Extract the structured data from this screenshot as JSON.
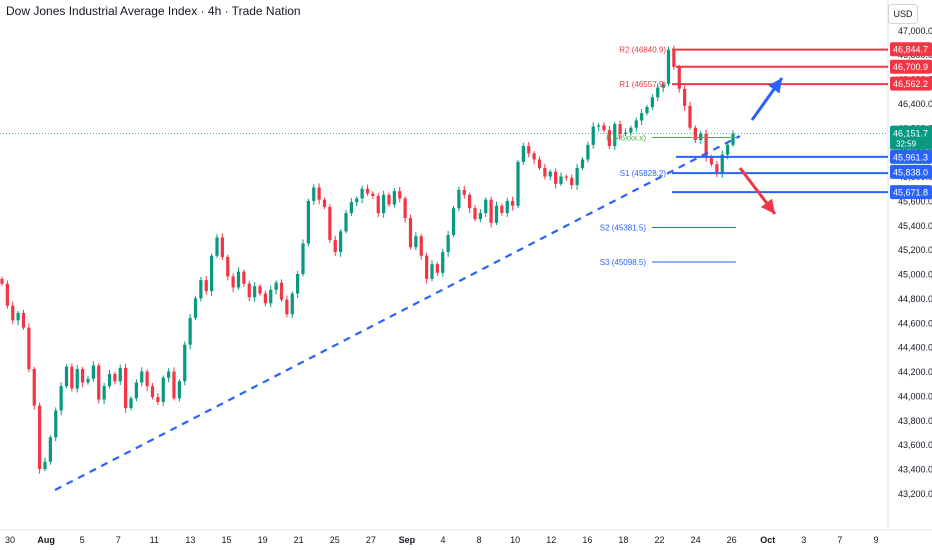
{
  "header": {
    "title": "Dow Jones Industrial Average Index · 4h · Trade Nation",
    "currency": "USD"
  },
  "colors": {
    "up": "#089981",
    "down": "#f23645",
    "trend": "#2962ff",
    "resistance": "#f23645",
    "support": "#2962ff",
    "pivot": "#4caf50",
    "grid": "#ffffff",
    "current_price_line": "#089981"
  },
  "chart_data": {
    "type": "candlestick",
    "y_ticks": [
      "47,000.0",
      "46,800.0",
      "46,600.0",
      "46,400.0",
      "46,200.0",
      "46,000.0",
      "45,800.0",
      "45,600.0",
      "45,400.0",
      "45,200.0",
      "45,000.0",
      "44,800.0",
      "44,600.0",
      "44,400.0",
      "44,200.0",
      "44,000.0",
      "43,800.0",
      "43,600.0",
      "43,400.0",
      "43,200.0"
    ],
    "ylim": [
      43080,
      47150
    ],
    "x_ticks": [
      "30",
      "Aug",
      "5",
      "7",
      "11",
      "13",
      "15",
      "19",
      "21",
      "25",
      "27",
      "Sep",
      "4",
      "8",
      "10",
      "12",
      "16",
      "18",
      "22",
      "24",
      "26",
      "Oct",
      "3",
      "7",
      "9"
    ],
    "x_tick_bold": [
      "Aug",
      "Sep",
      "Oct"
    ],
    "candles_close": [
      44920,
      44740,
      44620,
      44680,
      44560,
      44220,
      43920,
      43400,
      43460,
      43660,
      43880,
      44080,
      44240,
      44060,
      44220,
      44110,
      44140,
      44250,
      43970,
      44080,
      44180,
      44120,
      44230,
      43900,
      43980,
      44110,
      44200,
      44080,
      43990,
      43950,
      44150,
      44200,
      43980,
      44120,
      44420,
      44640,
      44800,
      44950,
      44860,
      45150,
      45300,
      45140,
      44980,
      44890,
      45020,
      44920,
      44810,
      44900,
      44840,
      44760,
      44870,
      44930,
      44790,
      44670,
      44840,
      45000,
      45250,
      45600,
      45710,
      45610,
      45550,
      45280,
      45180,
      45350,
      45500,
      45590,
      45620,
      45700,
      45660,
      45640,
      45500,
      45650,
      45570,
      45680,
      45620,
      45460,
      45220,
      45310,
      45150,
      44960,
      45080,
      45010,
      45180,
      45320,
      45540,
      45690,
      45650,
      45540,
      45450,
      45500,
      45610,
      45420,
      45560,
      45500,
      45600,
      45560,
      45920,
      46050,
      45990,
      45940,
      45870,
      45800,
      45840,
      45740,
      45800,
      45790,
      45730,
      45870,
      45940,
      46060,
      46210,
      46220,
      46180,
      46050,
      46230,
      46150,
      46160,
      46200,
      46260,
      46320,
      46370,
      46450,
      46530,
      46560,
      46840,
      46700,
      46520,
      46380,
      46200,
      46100,
      46150,
      45960,
      45900,
      45820,
      45980,
      46060,
      46152
    ],
    "last_price": "46,151.7",
    "countdown": "32:59",
    "levels": [
      {
        "name": "R2",
        "text": "R2 (46840.9)",
        "value": 46840.9,
        "badge": "46,844.7"
      },
      {
        "name": "R1",
        "text": "R1 (46557.9)",
        "value": 46557.9,
        "badge": "46,562.2"
      },
      {
        "name": "P",
        "text": "P (46xxx.x)",
        "value": 46120
      },
      {
        "name": "S1",
        "text": "S1 (45828.2)",
        "value": 45828.2,
        "badge": "45,838.0"
      },
      {
        "name": "S2",
        "text": "S2 (45381.5)",
        "value": 45381.5
      },
      {
        "name": "S3",
        "text": "S3 (45098.5)",
        "value": 45098.5
      }
    ],
    "price_badges": [
      {
        "label": "46,844.7",
        "value": 46844.7,
        "color": "#f23645"
      },
      {
        "label": "46,700.9",
        "value": 46700.9,
        "color": "#f23645"
      },
      {
        "label": "46,562.2",
        "value": 46562.2,
        "color": "#f23645"
      },
      {
        "label": "45,961.3",
        "value": 45961.3,
        "color": "#2962ff"
      },
      {
        "label": "45,838.0",
        "value": 45838.0,
        "color": "#2962ff"
      },
      {
        "label": "45,671.8",
        "value": 45671.8,
        "color": "#2962ff"
      }
    ]
  }
}
